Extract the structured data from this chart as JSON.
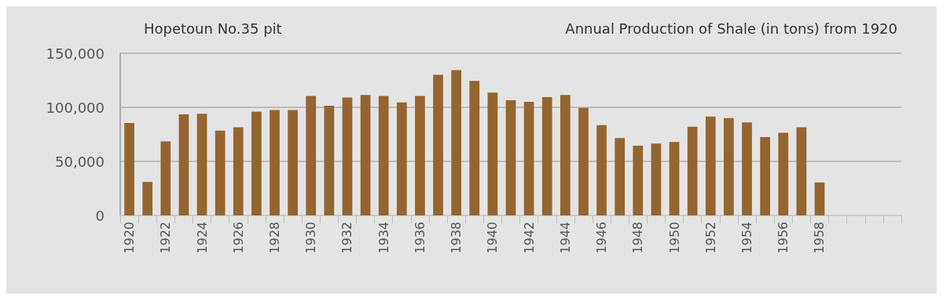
{
  "chart_data": {
    "type": "bar",
    "title": "Annual Production of Shale (in tons) from 1920",
    "subtitle": "Hopetoun No.35 pit",
    "categories": [
      "1920",
      null,
      "1922",
      null,
      "1924",
      null,
      "1926",
      null,
      "1928",
      null,
      "1930",
      null,
      "1932",
      null,
      "1934",
      null,
      "1936",
      null,
      "1938",
      null,
      "1940",
      null,
      "1942",
      null,
      "1944",
      null,
      "1946",
      null,
      "1948",
      null,
      "1950",
      null,
      "1952",
      null,
      "1954",
      null,
      "1956",
      null,
      "1958",
      null,
      null,
      null,
      null
    ],
    "values": [
      85500,
      31000,
      68500,
      93500,
      94000,
      78500,
      81500,
      96000,
      97500,
      97500,
      110500,
      101500,
      109000,
      111500,
      110500,
      104500,
      110500,
      130000,
      134500,
      124500,
      113500,
      106500,
      105000,
      109500,
      111500,
      99500,
      83500,
      71500,
      64500,
      66500,
      68000,
      82000,
      91500,
      90000,
      86000,
      72500,
      76500,
      81500,
      30500,
      null,
      null,
      null,
      null
    ],
    "color": "#95652f",
    "ylim": [
      0,
      150000
    ],
    "yticks": [
      0,
      {
        "value": 50000,
        "label": "50,000"
      },
      {
        "value": 100000,
        "label": "100,000"
      },
      {
        "value": 150000,
        "label": "150,000"
      }
    ],
    "grid": "y"
  }
}
